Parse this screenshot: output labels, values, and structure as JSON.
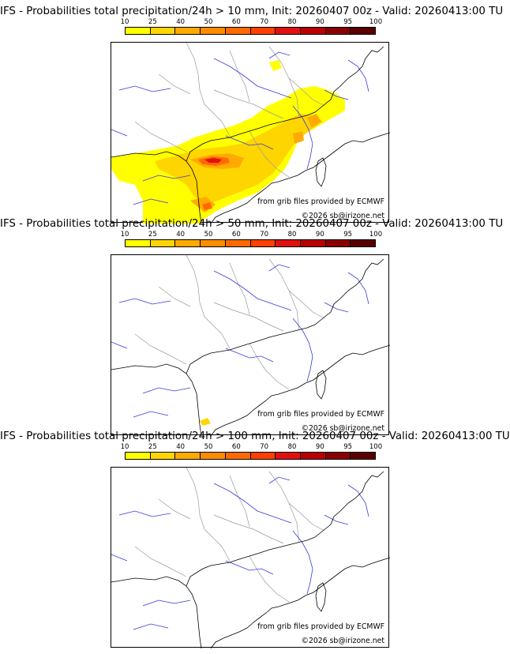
{
  "colorbar": {
    "ticks": [
      "10",
      "25",
      "40",
      "50",
      "60",
      "70",
      "80",
      "90",
      "95",
      "100"
    ],
    "colors": [
      "#ffff00",
      "#ffd500",
      "#ffaa00",
      "#ff8c00",
      "#ff6a00",
      "#ff4000",
      "#e01010",
      "#b80000",
      "#8a0000",
      "#5a0000"
    ]
  },
  "panels": [
    {
      "title": "IFS - Probabilities total precipitation/24h > 10 mm, Init: 20260407 00z - Valid: 20260413:00 TU",
      "credit_source": "from grib files provided by ECMWF",
      "credit_copyright": "©2026 sb@irizone.net",
      "precip_level": "high"
    },
    {
      "title": "IFS - Probabilities total precipitation/24h > 50 mm, Init: 20260407 00z - Valid: 20260413:00 TU",
      "credit_source": "from grib files provided by ECMWF",
      "credit_copyright": "©2026 sb@irizone.net",
      "precip_level": "trace"
    },
    {
      "title": "IFS - Probabilities total precipitation/24h > 100 mm, Init: 20260407 00z - Valid: 20260413:00 TU",
      "credit_source": "from grib files provided by ECMWF",
      "credit_copyright": "©2026 sb@irizone.net",
      "precip_level": "none"
    }
  ],
  "map_colors": {
    "coast": "#000000",
    "rivers": "#3a3adc",
    "borders": "#9a9a9a"
  }
}
